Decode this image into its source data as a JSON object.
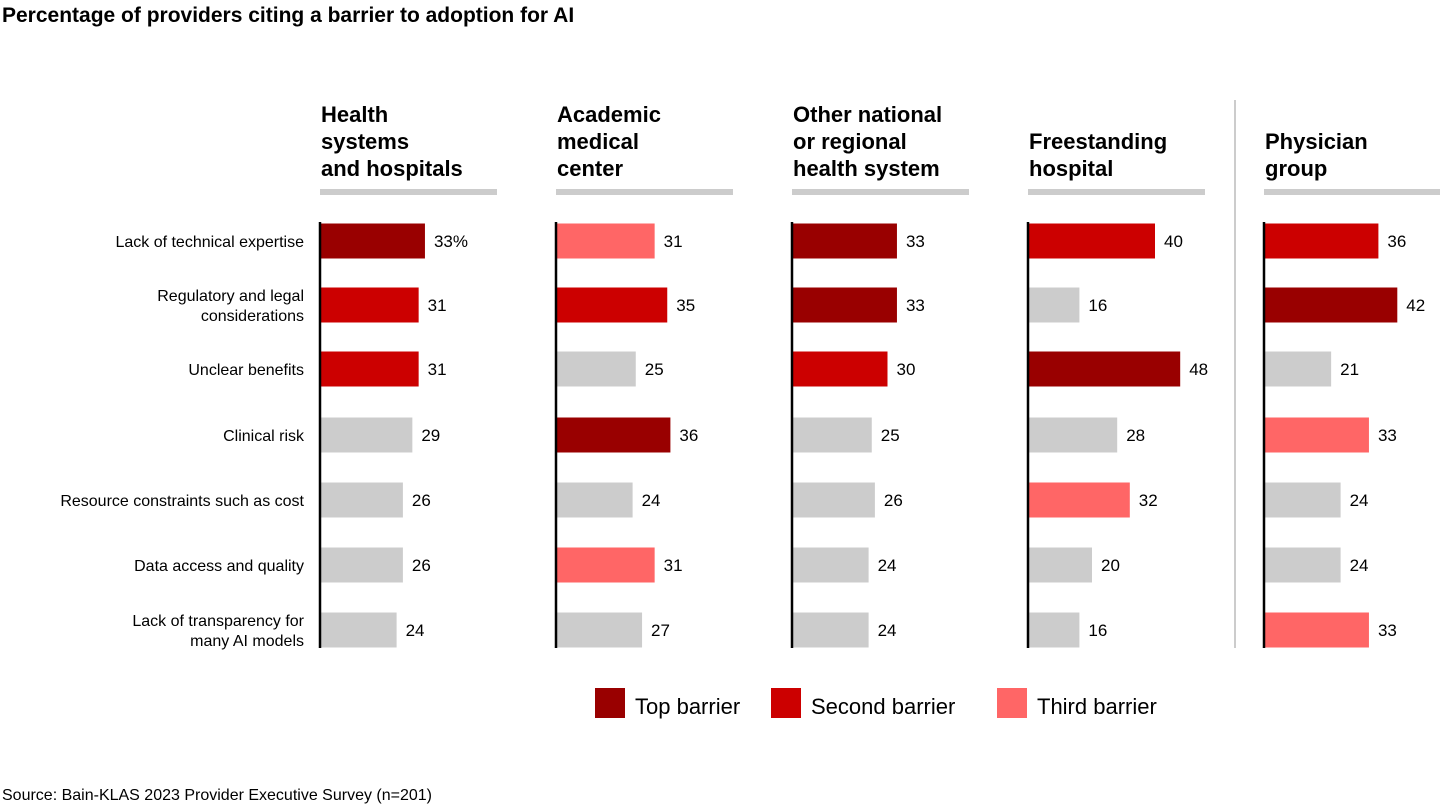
{
  "chart_data": {
    "type": "bar",
    "orientation": "horizontal",
    "title": "Percentage of providers citing a barrier to adoption for AI",
    "source": "Source: Bain-KLAS 2023 Provider Executive Survey (n=201)",
    "categories": [
      [
        "Lack of technical expertise"
      ],
      [
        "Regulatory and legal",
        "considerations"
      ],
      [
        "Unclear benefits"
      ],
      [
        "Clinical risk"
      ],
      [
        "Resource constraints such as cost"
      ],
      [
        "Data access and quality"
      ],
      [
        "Lack of transparency for",
        "many AI models"
      ]
    ],
    "unit_suffix_first": "%",
    "legend": [
      {
        "key": "top",
        "label": "Top barrier",
        "color": "#990000"
      },
      {
        "key": "second",
        "label": "Second barrier",
        "color": "#cc0000"
      },
      {
        "key": "third",
        "label": "Third barrier",
        "color": "#ff6666"
      }
    ],
    "other_color": "#cccccc",
    "panels": [
      {
        "name": [
          "Health",
          "systems",
          "and hospitals"
        ],
        "values": [
          33,
          31,
          31,
          29,
          26,
          26,
          24
        ],
        "rank": [
          "top",
          "second",
          "second",
          "",
          "",
          "",
          ""
        ]
      },
      {
        "name": [
          "Academic",
          "medical",
          "center"
        ],
        "values": [
          31,
          35,
          25,
          36,
          24,
          31,
          27
        ],
        "rank": [
          "third",
          "second",
          "",
          "top",
          "",
          "third",
          ""
        ]
      },
      {
        "name": [
          "Other national",
          "or regional",
          "health system"
        ],
        "values": [
          33,
          33,
          30,
          25,
          26,
          24,
          24
        ],
        "rank": [
          "top",
          "top",
          "second",
          "",
          "",
          "",
          ""
        ]
      },
      {
        "name": [
          "Freestanding",
          "hospital"
        ],
        "values": [
          40,
          16,
          48,
          28,
          32,
          20,
          16
        ],
        "rank": [
          "second",
          "",
          "top",
          "",
          "third",
          "",
          ""
        ]
      },
      {
        "name": [
          "Physician",
          "group"
        ],
        "values": [
          36,
          42,
          21,
          33,
          24,
          24,
          33
        ],
        "rank": [
          "second",
          "top",
          "",
          "third",
          "",
          "",
          "third"
        ]
      }
    ]
  }
}
